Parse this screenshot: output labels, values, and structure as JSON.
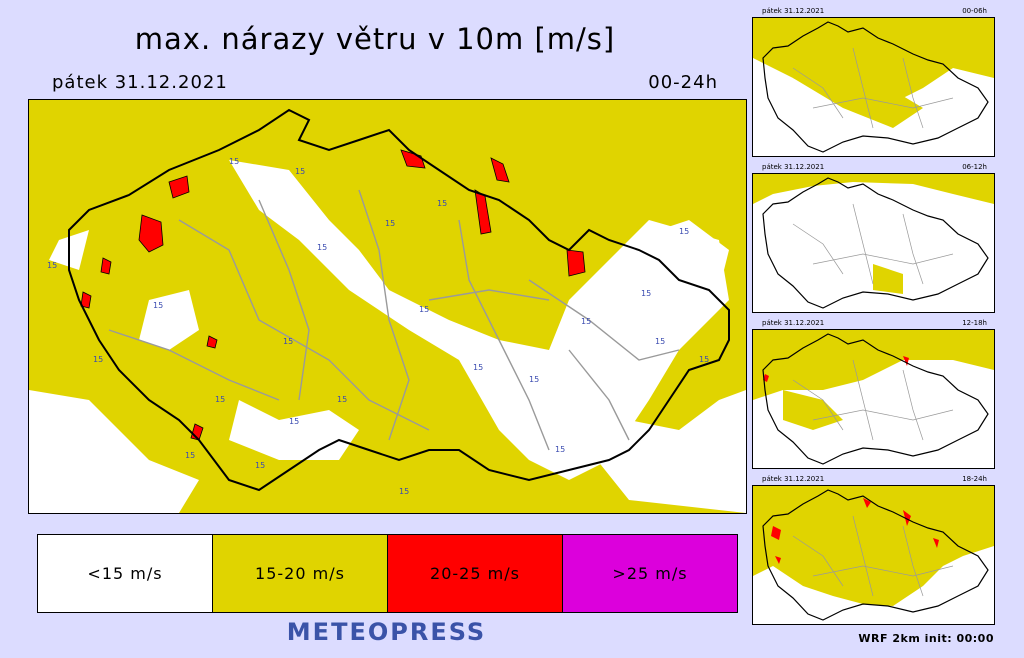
{
  "title": "max. nárazy větru v 10m [m/s]",
  "date_label": "pátek 31.12.2021",
  "period_label": "00-24h",
  "legend": [
    {
      "label": "<15 m/s",
      "color": "#ffffff"
    },
    {
      "label": "15-20 m/s",
      "color": "#e0d400"
    },
    {
      "label": "20-25 m/s",
      "color": "#ff0000"
    },
    {
      "label": ">25 m/s",
      "color": "#dc00dc"
    }
  ],
  "brand": "METEOPRESS",
  "model_info": "WRF  2km  init: 00:00",
  "contour_label": "15",
  "panels": [
    {
      "date": "pátek 31.12.2021",
      "period": "00-06h"
    },
    {
      "date": "pátek 31.12.2021",
      "period": "06-12h"
    },
    {
      "date": "pátek 31.12.2021",
      "period": "12-18h"
    },
    {
      "date": "pátek 31.12.2021",
      "period": "18-24h"
    }
  ]
}
